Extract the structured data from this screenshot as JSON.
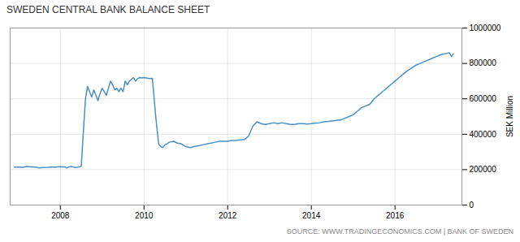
{
  "chart_data": {
    "type": "line",
    "title": "SWEDEN CENTRAL BANK BALANCE SHEET",
    "ylabel": "SEK Million",
    "annotations": [
      "SOURCE: WWW.TRADINGECONOMICS.COM | BANK OF SWEDEN"
    ],
    "color": "#4a90c4",
    "grid": true,
    "xlim": [
      2006.8,
      2017.6
    ],
    "xticks": [
      2008,
      2010,
      2012,
      2014,
      2016
    ],
    "ylim": [
      0,
      1000000
    ],
    "yticks": [
      0,
      200000,
      400000,
      600000,
      800000,
      1000000
    ],
    "x": [
      2006.9,
      2007.0,
      2007.1,
      2007.2,
      2007.3,
      2007.4,
      2007.5,
      2007.6,
      2007.7,
      2007.8,
      2007.9,
      2008.0,
      2008.1,
      2008.15,
      2008.2,
      2008.25,
      2008.3,
      2008.35,
      2008.4,
      2008.45,
      2008.5,
      2008.6,
      2008.65,
      2008.7,
      2008.75,
      2008.8,
      2008.85,
      2008.9,
      2008.95,
      2009.0,
      2009.05,
      2009.1,
      2009.15,
      2009.2,
      2009.25,
      2009.3,
      2009.35,
      2009.4,
      2009.45,
      2009.5,
      2009.55,
      2009.6,
      2009.65,
      2009.7,
      2009.75,
      2009.8,
      2009.85,
      2009.9,
      2009.95,
      2010.0,
      2010.05,
      2010.1,
      2010.15,
      2010.2,
      2010.28,
      2010.35,
      2010.4,
      2010.45,
      2010.5,
      2010.55,
      2010.6,
      2010.7,
      2010.8,
      2010.9,
      2011.0,
      2011.1,
      2011.2,
      2011.3,
      2011.4,
      2011.5,
      2011.6,
      2011.7,
      2011.8,
      2011.9,
      2012.0,
      2012.1,
      2012.2,
      2012.3,
      2012.4,
      2012.5,
      2012.6,
      2012.7,
      2012.8,
      2012.9,
      2013.0,
      2013.1,
      2013.2,
      2013.3,
      2013.4,
      2013.5,
      2013.6,
      2013.7,
      2013.8,
      2013.9,
      2014.0,
      2014.1,
      2014.2,
      2014.3,
      2014.4,
      2014.5,
      2014.6,
      2014.7,
      2014.8,
      2014.9,
      2015.0,
      2015.1,
      2015.2,
      2015.3,
      2015.4,
      2015.5,
      2015.6,
      2015.7,
      2015.8,
      2015.9,
      2016.0,
      2016.1,
      2016.2,
      2016.3,
      2016.4,
      2016.5,
      2016.6,
      2016.7,
      2016.8,
      2016.9,
      2017.0,
      2017.1,
      2017.2,
      2017.3,
      2017.35,
      2017.4
    ],
    "values": [
      215000,
      215000,
      213000,
      218000,
      216000,
      214000,
      210000,
      212000,
      213000,
      215000,
      214000,
      217000,
      216000,
      210000,
      215000,
      218000,
      215000,
      212000,
      213000,
      215000,
      220000,
      600000,
      670000,
      640000,
      610000,
      650000,
      620000,
      590000,
      630000,
      660000,
      640000,
      620000,
      660000,
      700000,
      680000,
      650000,
      660000,
      640000,
      660000,
      640000,
      700000,
      680000,
      700000,
      710000,
      720000,
      700000,
      715000,
      720000,
      718000,
      720000,
      718000,
      716000,
      714000,
      716000,
      500000,
      345000,
      330000,
      325000,
      340000,
      345000,
      355000,
      360000,
      350000,
      345000,
      330000,
      325000,
      330000,
      335000,
      340000,
      345000,
      350000,
      355000,
      360000,
      360000,
      360000,
      365000,
      365000,
      368000,
      370000,
      390000,
      445000,
      470000,
      460000,
      455000,
      460000,
      465000,
      460000,
      465000,
      460000,
      455000,
      455000,
      460000,
      460000,
      458000,
      460000,
      463000,
      465000,
      470000,
      472000,
      475000,
      478000,
      480000,
      490000,
      500000,
      510000,
      530000,
      550000,
      560000,
      570000,
      600000,
      620000,
      640000,
      660000,
      680000,
      700000,
      720000,
      740000,
      760000,
      775000,
      790000,
      800000,
      810000,
      820000,
      830000,
      840000,
      850000,
      855000,
      860000,
      840000,
      855000
    ]
  }
}
